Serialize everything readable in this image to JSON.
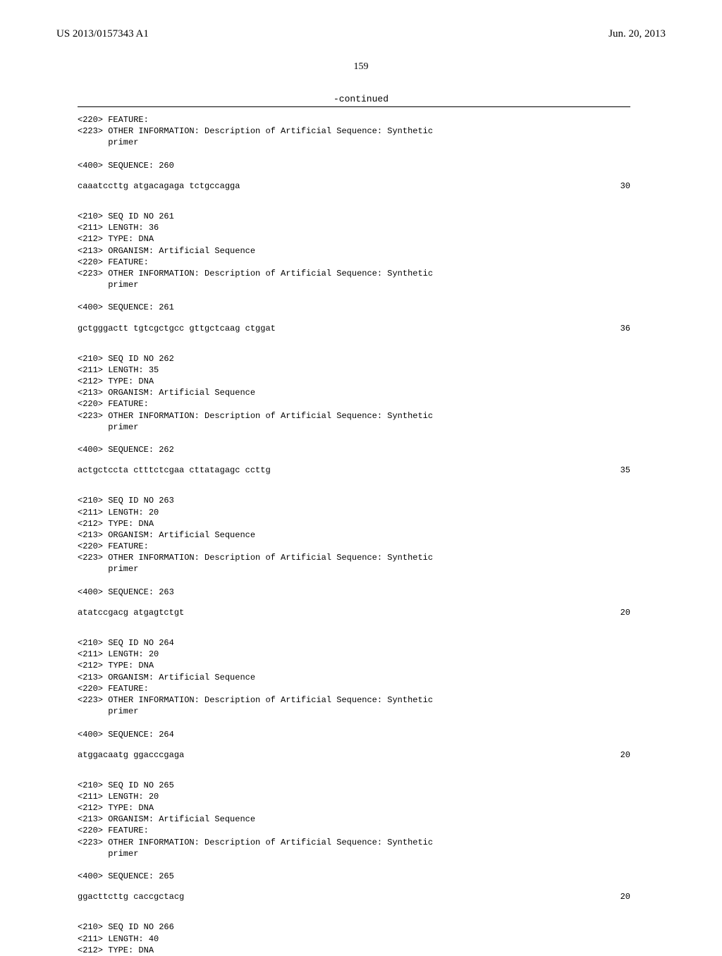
{
  "header": {
    "patent_number": "US 2013/0157343 A1",
    "date": "Jun. 20, 2013"
  },
  "page_number": "159",
  "continued_label": "-continued",
  "sequences": [
    {
      "meta": [
        "<220> FEATURE:",
        "<223> OTHER INFORMATION: Description of Artificial Sequence: Synthetic",
        "      primer",
        "",
        "<400> SEQUENCE: 260"
      ],
      "data": "caaatccttg atgacagaga tctgccagga",
      "length": "30"
    },
    {
      "meta": [
        "<210> SEQ ID NO 261",
        "<211> LENGTH: 36",
        "<212> TYPE: DNA",
        "<213> ORGANISM: Artificial Sequence",
        "<220> FEATURE:",
        "<223> OTHER INFORMATION: Description of Artificial Sequence: Synthetic",
        "      primer",
        "",
        "<400> SEQUENCE: 261"
      ],
      "data": "gctgggactt tgtcgctgcc gttgctcaag ctggat",
      "length": "36"
    },
    {
      "meta": [
        "<210> SEQ ID NO 262",
        "<211> LENGTH: 35",
        "<212> TYPE: DNA",
        "<213> ORGANISM: Artificial Sequence",
        "<220> FEATURE:",
        "<223> OTHER INFORMATION: Description of Artificial Sequence: Synthetic",
        "      primer",
        "",
        "<400> SEQUENCE: 262"
      ],
      "data": "actgctccta ctttctcgaa cttatagagc ccttg",
      "length": "35"
    },
    {
      "meta": [
        "<210> SEQ ID NO 263",
        "<211> LENGTH: 20",
        "<212> TYPE: DNA",
        "<213> ORGANISM: Artificial Sequence",
        "<220> FEATURE:",
        "<223> OTHER INFORMATION: Description of Artificial Sequence: Synthetic",
        "      primer",
        "",
        "<400> SEQUENCE: 263"
      ],
      "data": "atatccgacg atgagtctgt",
      "length": "20"
    },
    {
      "meta": [
        "<210> SEQ ID NO 264",
        "<211> LENGTH: 20",
        "<212> TYPE: DNA",
        "<213> ORGANISM: Artificial Sequence",
        "<220> FEATURE:",
        "<223> OTHER INFORMATION: Description of Artificial Sequence: Synthetic",
        "      primer",
        "",
        "<400> SEQUENCE: 264"
      ],
      "data": "atggacaatg ggacccgaga",
      "length": "20"
    },
    {
      "meta": [
        "<210> SEQ ID NO 265",
        "<211> LENGTH: 20",
        "<212> TYPE: DNA",
        "<213> ORGANISM: Artificial Sequence",
        "<220> FEATURE:",
        "<223> OTHER INFORMATION: Description of Artificial Sequence: Synthetic",
        "      primer",
        "",
        "<400> SEQUENCE: 265"
      ],
      "data": "ggacttcttg caccgctacg",
      "length": "20"
    },
    {
      "meta": [
        "<210> SEQ ID NO 266",
        "<211> LENGTH: 40",
        "<212> TYPE: DNA"
      ],
      "data": null,
      "length": null
    }
  ]
}
